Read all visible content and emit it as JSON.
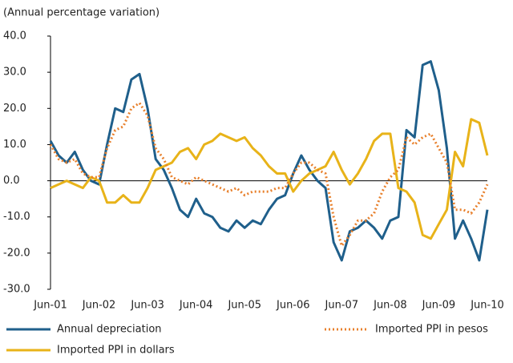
{
  "chart_data": {
    "type": "line",
    "subtitle": "(Annual percentage variation)",
    "categories": [
      "Jun-01",
      null,
      null,
      null,
      null,
      null,
      "Jun-02",
      null,
      null,
      null,
      null,
      null,
      "Jun-03",
      null,
      null,
      null,
      null,
      null,
      "Jun-04",
      null,
      null,
      null,
      null,
      null,
      "Jun-05",
      null,
      null,
      null,
      null,
      null,
      "Jun-06",
      null,
      null,
      null,
      null,
      null,
      "Jun-07",
      null,
      null,
      null,
      null,
      null,
      "Jun-08",
      null,
      null,
      null,
      null,
      null,
      "Jun-09",
      null,
      null,
      null,
      null,
      null,
      "Jun-10"
    ],
    "series": [
      {
        "name": "Annual depreciation",
        "color": "#1f5f8b",
        "dash": "none",
        "values": [
          11,
          7,
          5,
          8,
          3,
          0,
          -1,
          10,
          20,
          19,
          28,
          29.5,
          20,
          6,
          3,
          -2,
          -8,
          -10,
          -5,
          -9,
          -10,
          -13,
          -14,
          -11,
          -13,
          -11,
          -12,
          -8,
          -5,
          -4,
          2,
          7,
          3,
          0,
          -2,
          -17,
          -22,
          -14,
          -13,
          -11,
          -13,
          -16,
          -11,
          -10,
          14,
          12,
          32,
          33,
          25,
          9,
          -16,
          -11,
          -16,
          -22,
          -8
        ]
      },
      {
        "name": "Imported PPI in dollars",
        "color": "#e8b319",
        "dash": "none",
        "values": [
          -2,
          -1,
          0,
          -1,
          -2,
          1,
          0,
          -6,
          -6,
          -4,
          -6,
          -6,
          -2,
          3,
          4,
          5,
          8,
          9,
          6,
          10,
          11,
          13,
          12,
          11,
          12,
          9,
          7,
          4,
          2,
          2,
          -3,
          0,
          2,
          3,
          4,
          8,
          3,
          -1,
          2,
          6,
          11,
          13,
          13,
          -2,
          -3,
          -6,
          -15,
          -16,
          -12,
          -8,
          8,
          4,
          17,
          16,
          7
        ]
      },
      {
        "name": "Imported PPI in pesos",
        "color": "#e8802c",
        "dash": "2 3",
        "values": [
          10,
          6,
          5,
          6,
          2,
          1,
          1,
          9,
          14,
          15,
          20,
          21.5,
          18,
          9,
          6,
          1,
          0,
          -1,
          1,
          0,
          -1,
          -2,
          -3,
          -2,
          -4,
          -3,
          -3,
          -3,
          -2,
          -2,
          2,
          5,
          5,
          3,
          2,
          -10,
          -18,
          -15,
          -11,
          -11,
          -9,
          -3,
          1,
          3,
          12,
          10,
          12,
          13,
          9,
          5,
          -8,
          -8,
          -9,
          -6,
          -1
        ]
      }
    ],
    "ylim": [
      -30,
      40
    ],
    "yticks": [
      {
        "value": -30,
        "label": "-30.0"
      },
      {
        "value": -20,
        "label": "-20.0"
      },
      {
        "value": -10,
        "label": "-10.0"
      },
      {
        "value": 0,
        "label": "0.0"
      },
      {
        "value": 10,
        "label": "10.0"
      },
      {
        "value": 20,
        "label": "20.0"
      },
      {
        "value": 30,
        "label": "30.0"
      },
      {
        "value": 40,
        "label": "40.0"
      }
    ]
  }
}
